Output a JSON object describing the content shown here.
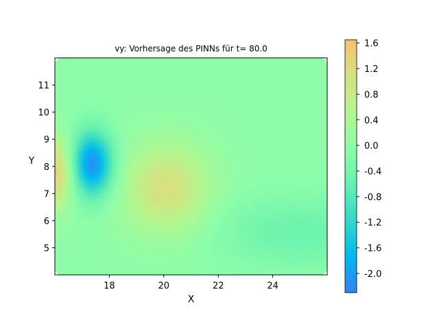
{
  "chart_data": {
    "type": "heatmap",
    "title": "vy: Vorhersage des PINNs für t= 80.0",
    "xlabel": "X",
    "ylabel": "Y",
    "xlim": [
      16.0,
      26.0
    ],
    "ylim": [
      4.0,
      12.0
    ],
    "x_ticks": [
      18,
      20,
      22,
      24
    ],
    "y_ticks": [
      5,
      6,
      7,
      8,
      9,
      10,
      11
    ],
    "colorbar": {
      "vmin": -2.3,
      "vmax": 1.65,
      "ticks": [
        "-2.0",
        "-1.6",
        "-1.2",
        "-0.8",
        "-0.4",
        "0.0",
        "0.4",
        "0.8",
        "1.2",
        "1.6"
      ],
      "tick_values": [
        -2.0,
        -1.6,
        -1.2,
        -0.8,
        -0.4,
        0.0,
        0.4,
        0.8,
        1.2,
        1.6
      ],
      "colors": [
        "#3a7ff5",
        "#00b8f0",
        "#33d8c8",
        "#66f0b0",
        "#8cfdaa",
        "#b2f790",
        "#d8e080",
        "#f5c070"
      ]
    },
    "background_value": 0.0,
    "field_features": [
      {
        "x": 16.0,
        "y": 7.8,
        "value": 1.4
      },
      {
        "x": 17.35,
        "y": 8.1,
        "value": -2.2
      },
      {
        "x": 20.1,
        "y": 7.2,
        "value": 1.1
      },
      {
        "x": 25.0,
        "y": 5.6,
        "value": -0.5
      }
    ]
  }
}
